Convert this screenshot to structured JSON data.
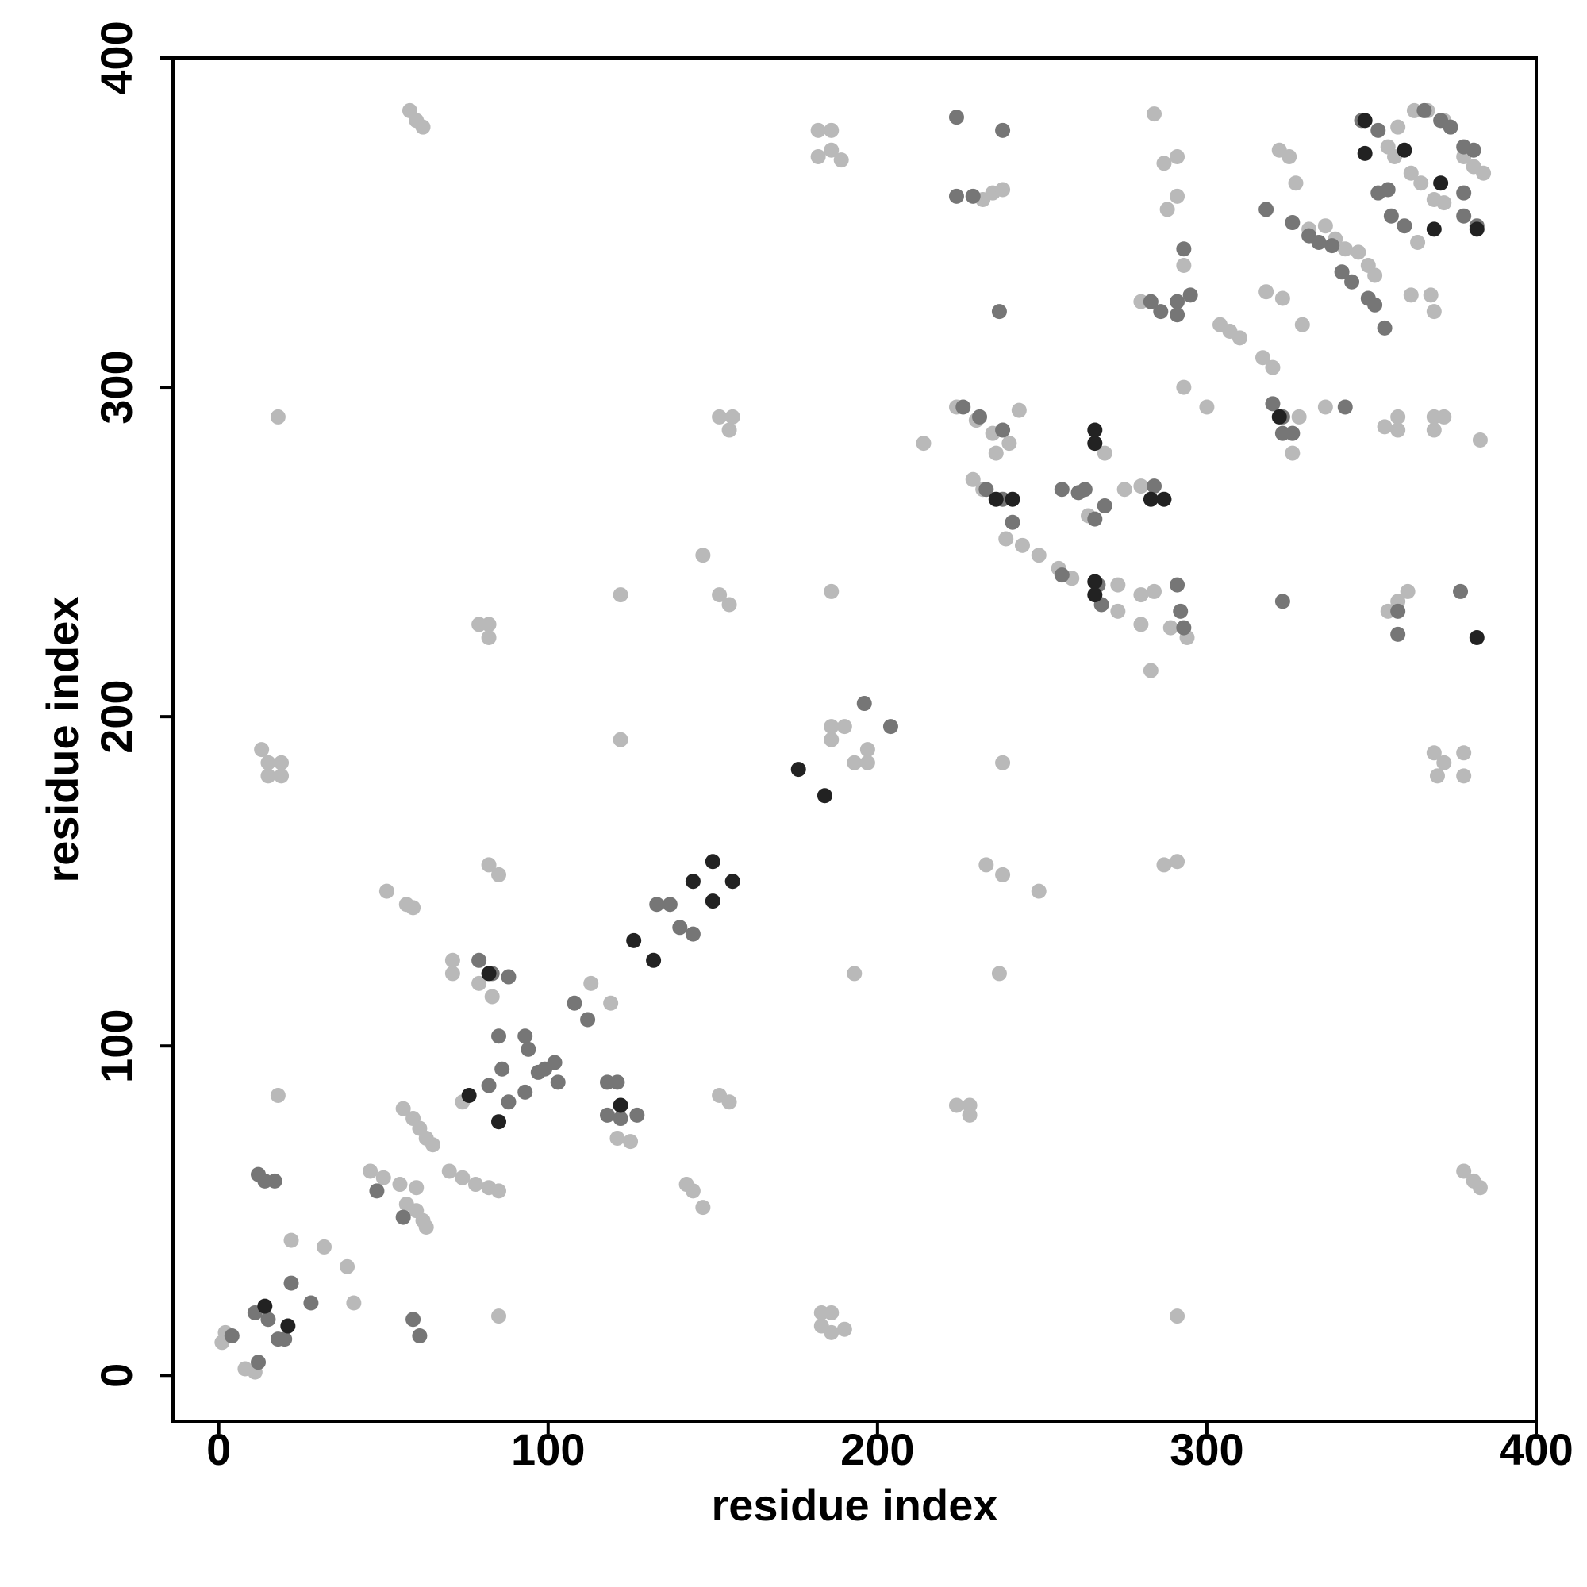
{
  "chart_data": {
    "type": "scatter",
    "x_label": "residue index",
    "y_label": "residue index",
    "xlim": [
      -13.9,
      400
    ],
    "ylim": [
      -13.9,
      400
    ],
    "xticks": [
      0,
      100,
      200,
      300,
      400
    ],
    "yticks": [
      0,
      100,
      200,
      300,
      400
    ],
    "grid": false,
    "series": [
      {
        "color": "#b9b9b9",
        "x": [
          1,
          2,
          8,
          11,
          22,
          32,
          39,
          41,
          18,
          18,
          13,
          15,
          19,
          15,
          19,
          58,
          60,
          62,
          51,
          57,
          59,
          46,
          50,
          55,
          60,
          56,
          59,
          61,
          63,
          65,
          57,
          60,
          62,
          63,
          70,
          74,
          78,
          82,
          85,
          71,
          71,
          79,
          82,
          82,
          82,
          85,
          85,
          79,
          83,
          74,
          113,
          119,
          122,
          122,
          121,
          125,
          142,
          144,
          147,
          147,
          152,
          155,
          152,
          155,
          156,
          152,
          155,
          182,
          186,
          182,
          186,
          189,
          186,
          186,
          190,
          186,
          197,
          193,
          197,
          193,
          183,
          186,
          183,
          186,
          190,
          214,
          224,
          228,
          228,
          233,
          238,
          237,
          238,
          249,
          232,
          235,
          238,
          224,
          230,
          235,
          240,
          243,
          236,
          229,
          232,
          239,
          244,
          249,
          255,
          259,
          264,
          269,
          275,
          280,
          273,
          280,
          284,
          273,
          280,
          289,
          294,
          283,
          284,
          287,
          291,
          288,
          291,
          280,
          293,
          293,
          300,
          287,
          291,
          291,
          304,
          307,
          310,
          317,
          320,
          318,
          323,
          322,
          325,
          327,
          326,
          328,
          331,
          336,
          339,
          342,
          336,
          329,
          346,
          349,
          351,
          354,
          358,
          358,
          355,
          358,
          361,
          355,
          357,
          362,
          365,
          369,
          372,
          362,
          368,
          369,
          369,
          369,
          372,
          369,
          372,
          370,
          378,
          378,
          383,
          378,
          381,
          383,
          358,
          363,
          367,
          372,
          378,
          381,
          384,
          364
        ],
        "values": [
          10,
          13,
          2,
          1,
          41,
          39,
          33,
          22,
          291,
          85,
          190,
          186,
          186,
          182,
          182,
          384,
          381,
          379,
          147,
          143,
          142,
          62,
          60,
          58,
          57,
          81,
          78,
          75,
          72,
          70,
          52,
          50,
          47,
          45,
          62,
          60,
          58,
          57,
          56,
          126,
          122,
          228,
          228,
          224,
          155,
          152,
          18,
          119,
          115,
          83,
          119,
          113,
          237,
          193,
          72,
          71,
          58,
          56,
          51,
          249,
          237,
          234,
          291,
          287,
          291,
          85,
          83,
          378,
          378,
          370,
          372,
          369,
          238,
          197,
          197,
          193,
          190,
          186,
          186,
          122,
          19,
          19,
          15,
          13,
          14,
          283,
          82,
          82,
          79,
          155,
          152,
          122,
          186,
          147,
          357,
          359,
          360,
          294,
          290,
          286,
          283,
          293,
          280,
          272,
          269,
          254,
          252,
          249,
          245,
          242,
          261,
          280,
          269,
          270,
          240,
          237,
          238,
          232,
          228,
          227,
          224,
          214,
          383,
          368,
          370,
          354,
          358,
          326,
          337,
          300,
          294,
          155,
          156,
          18,
          319,
          317,
          315,
          309,
          306,
          329,
          327,
          372,
          370,
          362,
          280,
          291,
          348,
          349,
          345,
          342,
          294,
          319,
          341,
          337,
          334,
          288,
          291,
          287,
          232,
          235,
          238,
          373,
          370,
          365,
          362,
          357,
          356,
          328,
          328,
          323,
          291,
          287,
          291,
          189,
          186,
          182,
          189,
          182,
          284,
          62,
          59,
          57,
          379,
          384,
          384,
          381,
          370,
          367,
          365,
          344
        ]
      },
      {
        "color": "#767676",
        "x": [
          4,
          11,
          15,
          18,
          20,
          12,
          22,
          28,
          12,
          14,
          17,
          59,
          61,
          48,
          56,
          79,
          83,
          88,
          82,
          86,
          85,
          88,
          93,
          94,
          99,
          93,
          103,
          102,
          97,
          108,
          112,
          118,
          121,
          118,
          122,
          127,
          133,
          137,
          140,
          144,
          196,
          204,
          224,
          224,
          229,
          238,
          237,
          226,
          231,
          238,
          233,
          238,
          241,
          256,
          261,
          263,
          256,
          267,
          268,
          266,
          269,
          293,
          295,
          283,
          286,
          291,
          291,
          284,
          291,
          292,
          293,
          318,
          320,
          323,
          323,
          326,
          323,
          326,
          331,
          334,
          338,
          341,
          344,
          349,
          351,
          342,
          347,
          352,
          355,
          356,
          360,
          352,
          354,
          358,
          358,
          366,
          371,
          374,
          378,
          381,
          378,
          378,
          382,
          377
        ],
        "values": [
          12,
          19,
          17,
          11,
          11,
          4,
          28,
          22,
          61,
          59,
          59,
          17,
          12,
          56,
          48,
          126,
          122,
          121,
          88,
          93,
          103,
          83,
          103,
          99,
          93,
          86,
          89,
          95,
          92,
          113,
          108,
          89,
          89,
          79,
          78,
          79,
          143,
          143,
          136,
          134,
          204,
          197,
          382,
          358,
          358,
          378,
          323,
          294,
          291,
          287,
          269,
          266,
          259,
          269,
          268,
          269,
          243,
          240,
          234,
          260,
          264,
          342,
          328,
          326,
          323,
          326,
          322,
          270,
          240,
          232,
          227,
          354,
          295,
          291,
          286,
          286,
          235,
          350,
          346,
          344,
          343,
          335,
          332,
          327,
          325,
          294,
          381,
          378,
          360,
          352,
          349,
          359,
          318,
          232,
          225,
          384,
          381,
          379,
          373,
          372,
          359,
          352,
          349,
          238
        ]
      },
      {
        "color": "#222222",
        "x": [
          14,
          21,
          76,
          85,
          82,
          122,
          126,
          132,
          144,
          150,
          150,
          156,
          176,
          184,
          266,
          266,
          236,
          241,
          266,
          266,
          283,
          287,
          348,
          348,
          360,
          371,
          369,
          382,
          382,
          322
        ],
        "values": [
          21,
          15,
          85,
          77,
          122,
          82,
          132,
          126,
          150,
          156,
          144,
          150,
          184,
          176,
          287,
          283,
          266,
          266,
          241,
          237,
          266,
          266,
          371,
          381,
          372,
          362,
          348,
          224,
          348,
          291
        ]
      }
    ]
  }
}
